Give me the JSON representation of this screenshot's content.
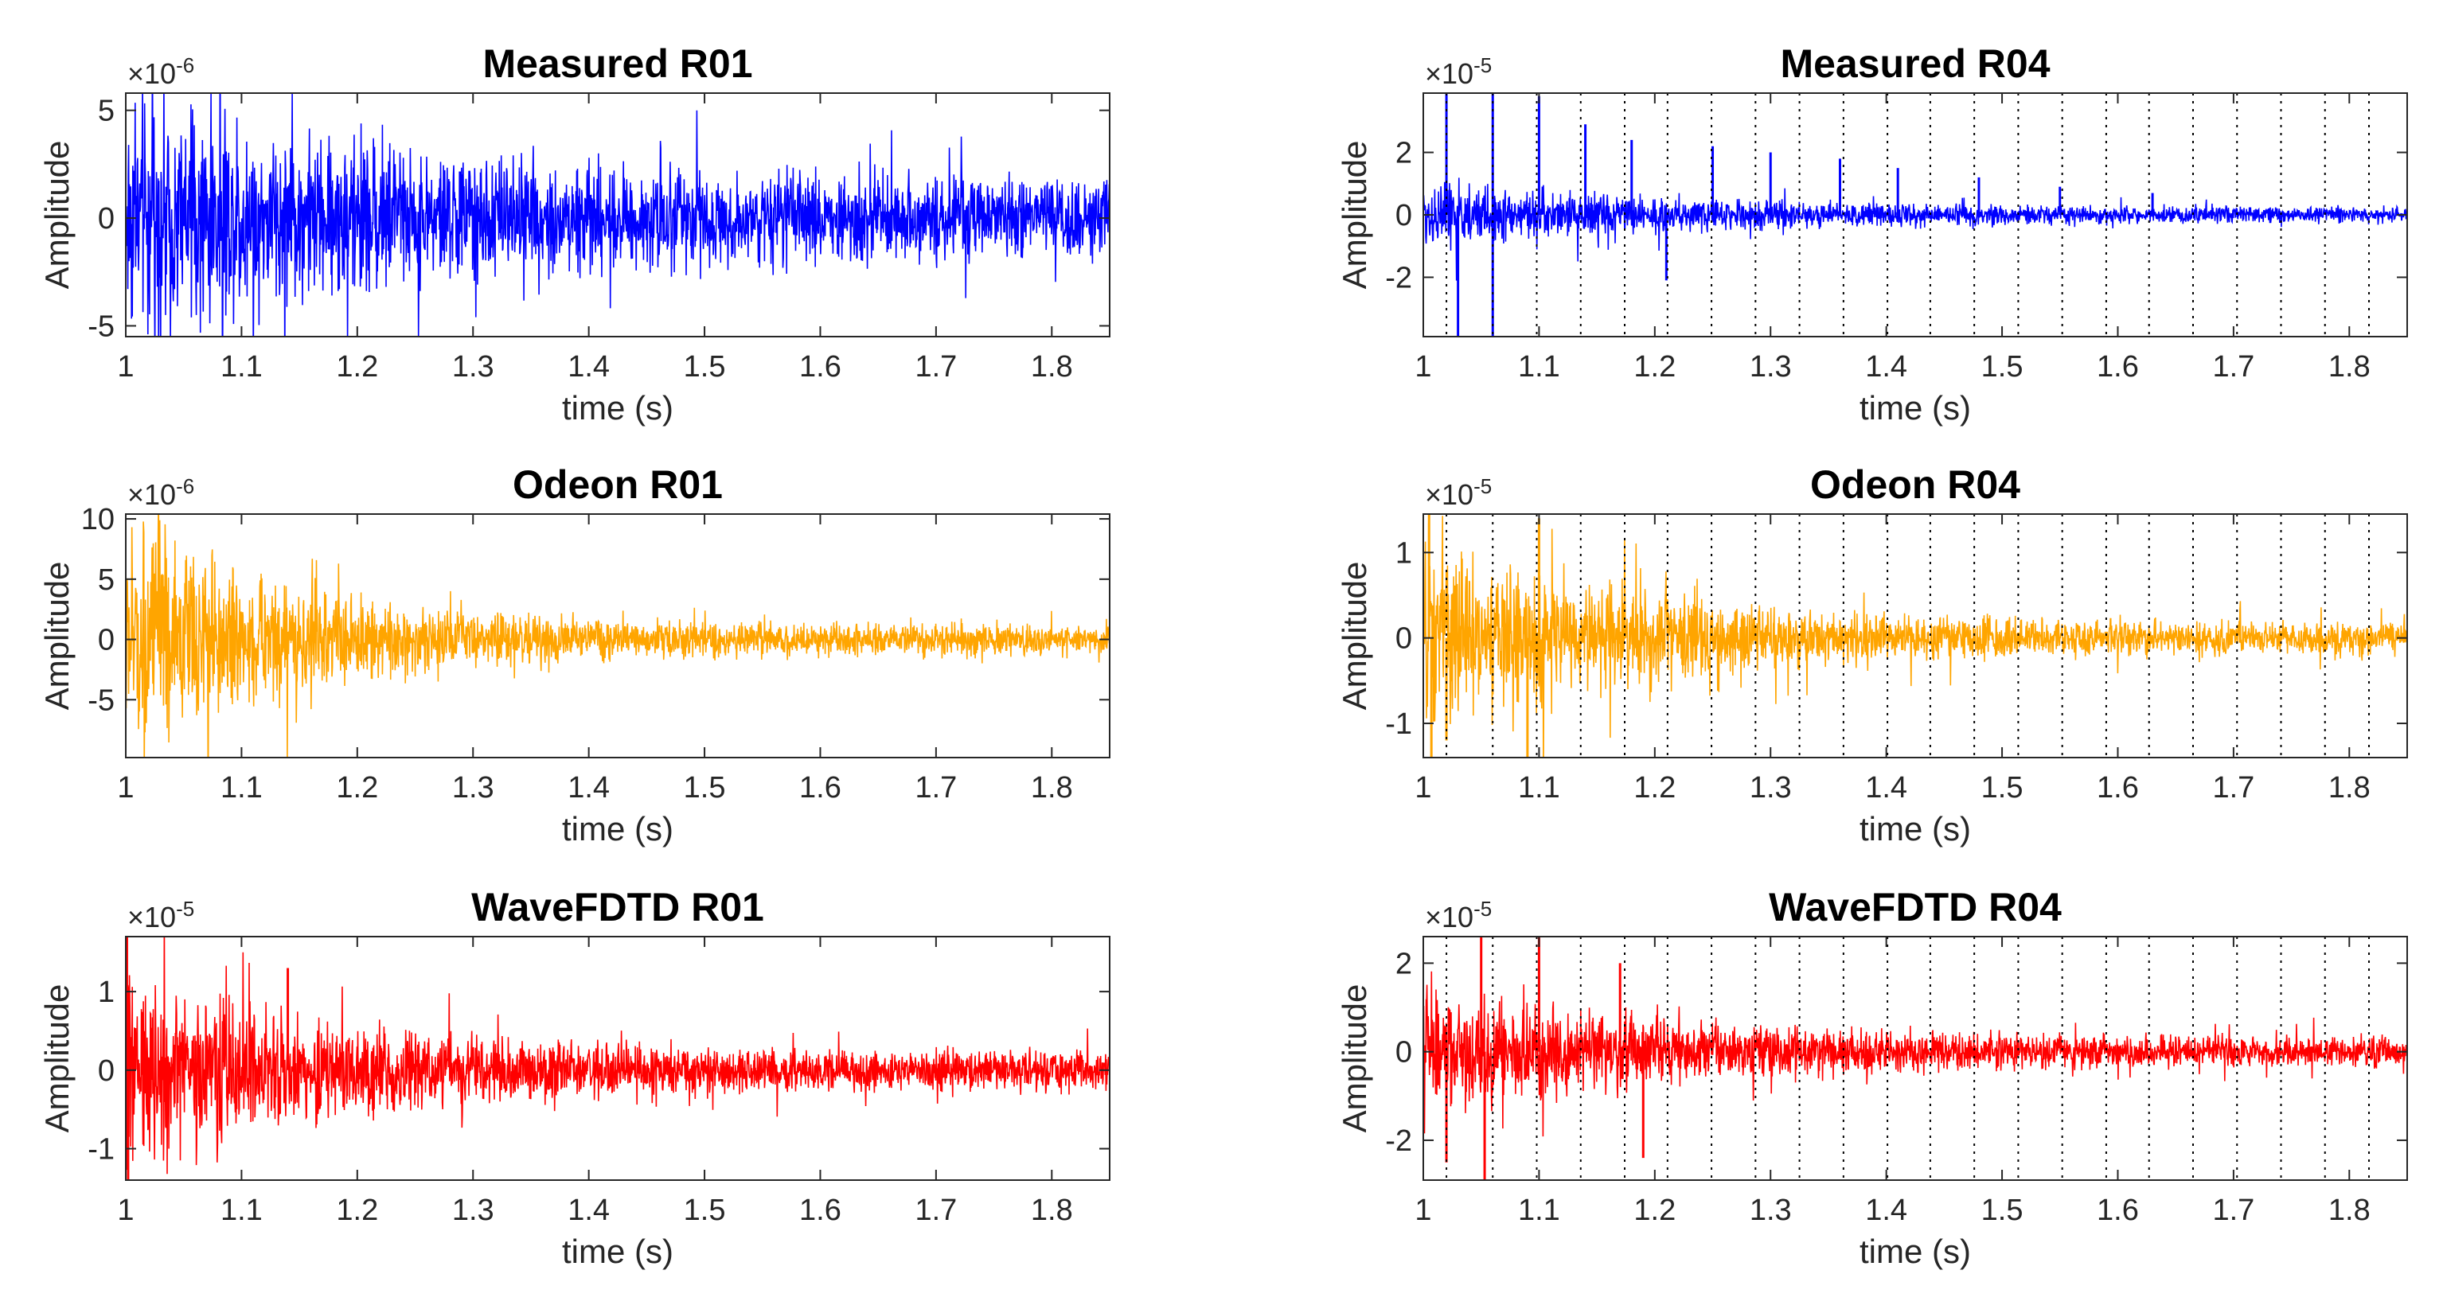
{
  "chart_data": [
    {
      "type": "line",
      "title": "Measured R01",
      "xlabel": "time (s)",
      "ylabel": "Amplitude",
      "multiplier": "×10",
      "exponent": "-6",
      "xlim": [
        1,
        1.85
      ],
      "ylim": [
        -5.5,
        5.8
      ],
      "xticks": [
        1,
        1.1,
        1.2,
        1.3,
        1.4,
        1.5,
        1.6,
        1.7,
        1.8
      ],
      "xtick_labels": [
        "1",
        "1.1",
        "1.2",
        "1.3",
        "1.4",
        "1.5",
        "1.6",
        "1.7",
        "1.8"
      ],
      "yticks": [
        -5,
        0,
        5
      ],
      "ytick_labels": [
        "-5",
        "0",
        "5"
      ],
      "color": "#0000ff",
      "series": [
        {
          "name": "Measured R01",
          "envelope": {
            "start": 3.6,
            "end": 1.1,
            "decay": 1.5
          },
          "markers": []
        }
      ],
      "dotted_lines_x": []
    },
    {
      "type": "line",
      "title": "Measured R04",
      "xlabel": "time (s)",
      "ylabel": "Amplitude",
      "multiplier": "×10",
      "exponent": "-5",
      "xlim": [
        1,
        1.85
      ],
      "ylim": [
        -3.9,
        3.9
      ],
      "xticks": [
        1,
        1.1,
        1.2,
        1.3,
        1.4,
        1.5,
        1.6,
        1.7,
        1.8
      ],
      "xtick_labels": [
        "1",
        "1.1",
        "1.2",
        "1.3",
        "1.4",
        "1.5",
        "1.6",
        "1.7",
        "1.8"
      ],
      "yticks": [
        -2,
        0,
        2
      ],
      "ytick_labels": [
        "-2",
        "0",
        "2"
      ],
      "color": "#0000ff",
      "series": [
        {
          "name": "Measured R04",
          "envelope": {
            "start": 0.7,
            "end": 0.15,
            "decay": 1.8
          },
          "markers": [
            [
              1.02,
              3.9
            ],
            [
              1.06,
              3.9
            ],
            [
              1.06,
              -3.9
            ],
            [
              1.1,
              3.8
            ],
            [
              1.14,
              2.9
            ],
            [
              1.03,
              -3.9
            ],
            [
              1.18,
              2.4
            ],
            [
              1.21,
              -2.1
            ],
            [
              1.25,
              2.2
            ],
            [
              1.3,
              2.0
            ],
            [
              1.36,
              1.8
            ],
            [
              1.41,
              1.5
            ],
            [
              1.48,
              1.2
            ],
            [
              1.55,
              0.9
            ],
            [
              1.63,
              0.7
            ]
          ]
        }
      ],
      "dotted_lines_x": [
        1.02,
        1.06,
        1.098,
        1.136,
        1.174,
        1.211,
        1.249,
        1.287,
        1.325,
        1.363,
        1.401,
        1.438,
        1.476,
        1.514,
        1.552,
        1.59,
        1.627,
        1.665,
        1.703,
        1.741,
        1.779,
        1.817
      ]
    },
    {
      "type": "line",
      "title": "Odeon R01",
      "xlabel": "time (s)",
      "ylabel": "Amplitude",
      "multiplier": "×10",
      "exponent": "-6",
      "xlim": [
        1,
        1.85
      ],
      "ylim": [
        -9.8,
        10.4
      ],
      "xticks": [
        1,
        1.1,
        1.2,
        1.3,
        1.4,
        1.5,
        1.6,
        1.7,
        1.8
      ],
      "xtick_labels": [
        "1",
        "1.1",
        "1.2",
        "1.3",
        "1.4",
        "1.5",
        "1.6",
        "1.7",
        "1.8"
      ],
      "yticks": [
        -5,
        0,
        5,
        10
      ],
      "ytick_labels": [
        "-5",
        "0",
        "5",
        "10"
      ],
      "color": "#ffa500",
      "series": [
        {
          "name": "Odeon R01",
          "envelope": {
            "start": 6.5,
            "end": 0.8,
            "decay": 2.6
          },
          "markers": []
        }
      ],
      "dotted_lines_x": []
    },
    {
      "type": "line",
      "title": "Odeon R04",
      "xlabel": "time (s)",
      "ylabel": "Amplitude",
      "multiplier": "×10",
      "exponent": "-5",
      "xlim": [
        1,
        1.85
      ],
      "ylim": [
        -1.4,
        1.45
      ],
      "xticks": [
        1,
        1.1,
        1.2,
        1.3,
        1.4,
        1.5,
        1.6,
        1.7,
        1.8
      ],
      "xtick_labels": [
        "1",
        "1.1",
        "1.2",
        "1.3",
        "1.4",
        "1.5",
        "1.6",
        "1.7",
        "1.8"
      ],
      "yticks": [
        -1,
        0,
        1
      ],
      "ytick_labels": [
        "-1",
        "0",
        "1"
      ],
      "color": "#ffa500",
      "series": [
        {
          "name": "Odeon R04",
          "envelope": {
            "start": 0.75,
            "end": 0.12,
            "decay": 2.2
          },
          "markers": [
            [
              1.005,
              1.45
            ],
            [
              1.007,
              -1.4
            ],
            [
              1.02,
              -1.2
            ],
            [
              1.1,
              1.4
            ],
            [
              1.09,
              -1.4
            ]
          ]
        }
      ],
      "dotted_lines_x": [
        1.02,
        1.06,
        1.098,
        1.136,
        1.174,
        1.211,
        1.249,
        1.287,
        1.325,
        1.363,
        1.401,
        1.438,
        1.476,
        1.514,
        1.552,
        1.59,
        1.627,
        1.665,
        1.703,
        1.741,
        1.779,
        1.817
      ]
    },
    {
      "type": "line",
      "title": "WaveFDTD R01",
      "xlabel": "time (s)",
      "ylabel": "Amplitude",
      "multiplier": "×10",
      "exponent": "-5",
      "xlim": [
        1,
        1.85
      ],
      "ylim": [
        -1.4,
        1.7
      ],
      "xticks": [
        1,
        1.1,
        1.2,
        1.3,
        1.4,
        1.5,
        1.6,
        1.7,
        1.8
      ],
      "xtick_labels": [
        "1",
        "1.1",
        "1.2",
        "1.3",
        "1.4",
        "1.5",
        "1.6",
        "1.7",
        "1.8"
      ],
      "yticks": [
        -1,
        0,
        1
      ],
      "ytick_labels": [
        "-1",
        "0",
        "1"
      ],
      "color": "#ff0000",
      "series": [
        {
          "name": "WaveFDTD R01",
          "envelope": {
            "start": 0.85,
            "end": 0.15,
            "decay": 2.1
          },
          "markers": [
            [
              1.001,
              1.7
            ],
            [
              1.002,
              -1.4
            ],
            [
              1.14,
              1.3
            ]
          ]
        }
      ],
      "dotted_lines_x": []
    },
    {
      "type": "line",
      "title": "WaveFDTD R04",
      "xlabel": "time (s)",
      "ylabel": "Amplitude",
      "multiplier": "×10",
      "exponent": "-5",
      "xlim": [
        1,
        1.85
      ],
      "ylim": [
        -2.9,
        2.6
      ],
      "xticks": [
        1,
        1.1,
        1.2,
        1.3,
        1.4,
        1.5,
        1.6,
        1.7,
        1.8
      ],
      "xtick_labels": [
        "1",
        "1.1",
        "1.2",
        "1.3",
        "1.4",
        "1.5",
        "1.6",
        "1.7",
        "1.8"
      ],
      "yticks": [
        -2,
        0,
        2
      ],
      "ytick_labels": [
        "-2",
        "0",
        "2"
      ],
      "color": "#ff0000",
      "series": [
        {
          "name": "WaveFDTD R04",
          "envelope": {
            "start": 1.0,
            "end": 0.2,
            "decay": 2.0
          },
          "markers": [
            [
              1.05,
              2.6
            ],
            [
              1.053,
              -2.9
            ],
            [
              1.1,
              2.6
            ],
            [
              1.02,
              -2.5
            ],
            [
              1.17,
              2.0
            ],
            [
              1.19,
              -2.4
            ]
          ]
        }
      ],
      "dotted_lines_x": [
        1.02,
        1.06,
        1.098,
        1.136,
        1.174,
        1.211,
        1.249,
        1.287,
        1.325,
        1.363,
        1.401,
        1.438,
        1.476,
        1.514,
        1.552,
        1.59,
        1.627,
        1.665,
        1.703,
        1.741,
        1.779,
        1.817
      ]
    }
  ]
}
